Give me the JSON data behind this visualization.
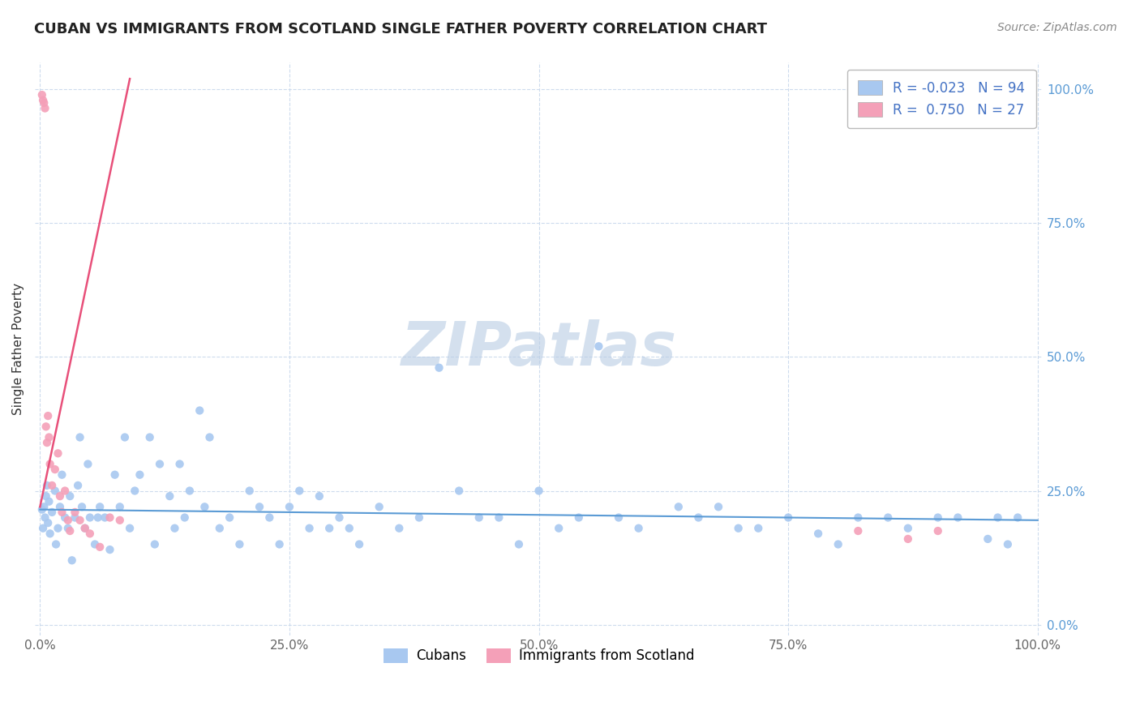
{
  "title": "CUBAN VS IMMIGRANTS FROM SCOTLAND SINGLE FATHER POVERTY CORRELATION CHART",
  "source": "Source: ZipAtlas.com",
  "ylabel": "Single Father Poverty",
  "xlim": [
    -0.005,
    1.005
  ],
  "ylim": [
    -0.02,
    1.05
  ],
  "xticks": [
    0.0,
    0.25,
    0.5,
    0.75,
    1.0
  ],
  "xtick_labels": [
    "0.0%",
    "25.0%",
    "50.0%",
    "75.0%",
    "100.0%"
  ],
  "yticks": [
    0.0,
    0.25,
    0.5,
    0.75,
    1.0
  ],
  "ytick_labels_right": [
    "0.0%",
    "25.0%",
    "50.0%",
    "75.0%",
    "100.0%"
  ],
  "blue_R": -0.023,
  "blue_N": 94,
  "pink_R": 0.75,
  "pink_N": 27,
  "blue_color": "#A8C8F0",
  "pink_color": "#F4A0B8",
  "blue_line_color": "#5B9BD5",
  "pink_line_color": "#E8507A",
  "watermark": "ZIPatlas",
  "legend_label_blue": "Cubans",
  "legend_label_pink": "Immigrants from Scotland",
  "blue_line_x": [
    0.0,
    1.0
  ],
  "blue_line_y": [
    0.215,
    0.195
  ],
  "pink_line_x": [
    0.0,
    0.09
  ],
  "pink_line_y": [
    0.22,
    1.02
  ],
  "blue_x": [
    0.002,
    0.003,
    0.004,
    0.005,
    0.006,
    0.007,
    0.008,
    0.009,
    0.01,
    0.012,
    0.015,
    0.016,
    0.018,
    0.02,
    0.022,
    0.025,
    0.028,
    0.03,
    0.032,
    0.035,
    0.038,
    0.04,
    0.042,
    0.045,
    0.048,
    0.05,
    0.055,
    0.058,
    0.06,
    0.065,
    0.07,
    0.075,
    0.08,
    0.085,
    0.09,
    0.095,
    0.1,
    0.11,
    0.115,
    0.12,
    0.13,
    0.135,
    0.14,
    0.145,
    0.15,
    0.16,
    0.165,
    0.17,
    0.18,
    0.19,
    0.2,
    0.21,
    0.22,
    0.23,
    0.24,
    0.25,
    0.26,
    0.27,
    0.28,
    0.29,
    0.3,
    0.31,
    0.32,
    0.34,
    0.36,
    0.38,
    0.4,
    0.42,
    0.44,
    0.46,
    0.48,
    0.5,
    0.52,
    0.54,
    0.56,
    0.58,
    0.6,
    0.64,
    0.66,
    0.68,
    0.7,
    0.72,
    0.75,
    0.78,
    0.8,
    0.82,
    0.85,
    0.87,
    0.9,
    0.92,
    0.95,
    0.96,
    0.97,
    0.98
  ],
  "blue_y": [
    0.215,
    0.18,
    0.22,
    0.2,
    0.24,
    0.26,
    0.19,
    0.23,
    0.17,
    0.21,
    0.25,
    0.15,
    0.18,
    0.22,
    0.28,
    0.2,
    0.18,
    0.24,
    0.12,
    0.2,
    0.26,
    0.35,
    0.22,
    0.18,
    0.3,
    0.2,
    0.15,
    0.2,
    0.22,
    0.2,
    0.14,
    0.28,
    0.22,
    0.35,
    0.18,
    0.25,
    0.28,
    0.35,
    0.15,
    0.3,
    0.24,
    0.18,
    0.3,
    0.2,
    0.25,
    0.4,
    0.22,
    0.35,
    0.18,
    0.2,
    0.15,
    0.25,
    0.22,
    0.2,
    0.15,
    0.22,
    0.25,
    0.18,
    0.24,
    0.18,
    0.2,
    0.18,
    0.15,
    0.22,
    0.18,
    0.2,
    0.48,
    0.25,
    0.2,
    0.2,
    0.15,
    0.25,
    0.18,
    0.2,
    0.52,
    0.2,
    0.18,
    0.22,
    0.2,
    0.22,
    0.18,
    0.18,
    0.2,
    0.17,
    0.15,
    0.2,
    0.2,
    0.18,
    0.2,
    0.2,
    0.16,
    0.2,
    0.15,
    0.2
  ],
  "pink_x": [
    0.002,
    0.003,
    0.004,
    0.005,
    0.006,
    0.007,
    0.008,
    0.009,
    0.01,
    0.012,
    0.015,
    0.018,
    0.02,
    0.022,
    0.025,
    0.028,
    0.03,
    0.035,
    0.04,
    0.045,
    0.05,
    0.06,
    0.07,
    0.08,
    0.82,
    0.87,
    0.9
  ],
  "pink_y": [
    0.99,
    0.98,
    0.975,
    0.965,
    0.37,
    0.34,
    0.39,
    0.35,
    0.3,
    0.26,
    0.29,
    0.32,
    0.24,
    0.21,
    0.25,
    0.195,
    0.175,
    0.21,
    0.195,
    0.18,
    0.17,
    0.145,
    0.2,
    0.195,
    0.175,
    0.16,
    0.175
  ]
}
